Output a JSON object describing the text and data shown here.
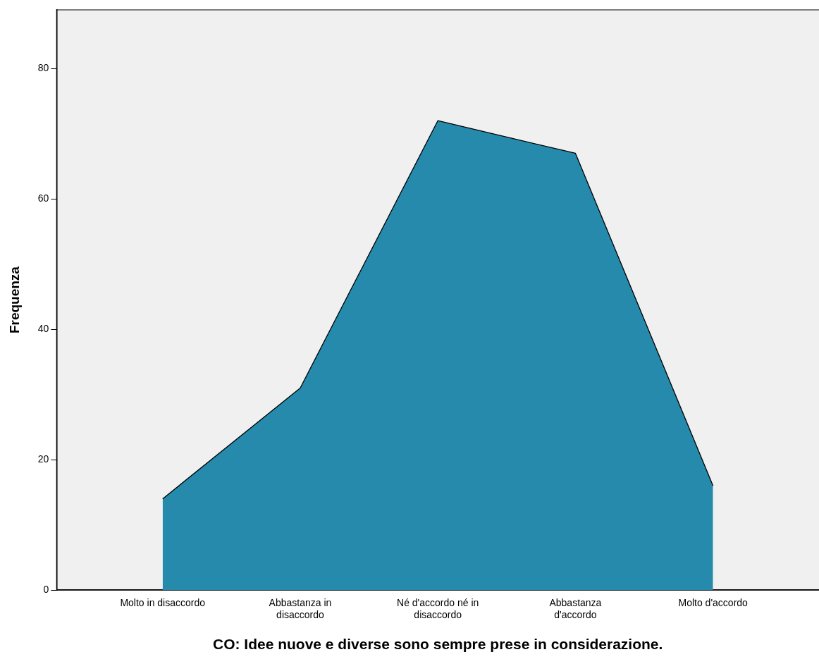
{
  "chart_data": {
    "type": "area",
    "xlabel": "CO: Idee nuove e diverse sono sempre prese in considerazione.",
    "ylabel": "Frequenza",
    "categories": [
      "Molto in disaccordo",
      "Abbastanza in disaccordo",
      "Né d'accordo né in disaccordo",
      "Abbastanza d'accordo",
      "Molto d'accordo"
    ],
    "values": [
      14,
      31,
      72,
      67,
      16
    ],
    "color": "#258aab",
    "ylim": [
      0,
      89
    ],
    "yticks": [
      0,
      20,
      40,
      60,
      80
    ],
    "grid": false,
    "legend": false,
    "marker": "none",
    "line_style": "solid"
  }
}
